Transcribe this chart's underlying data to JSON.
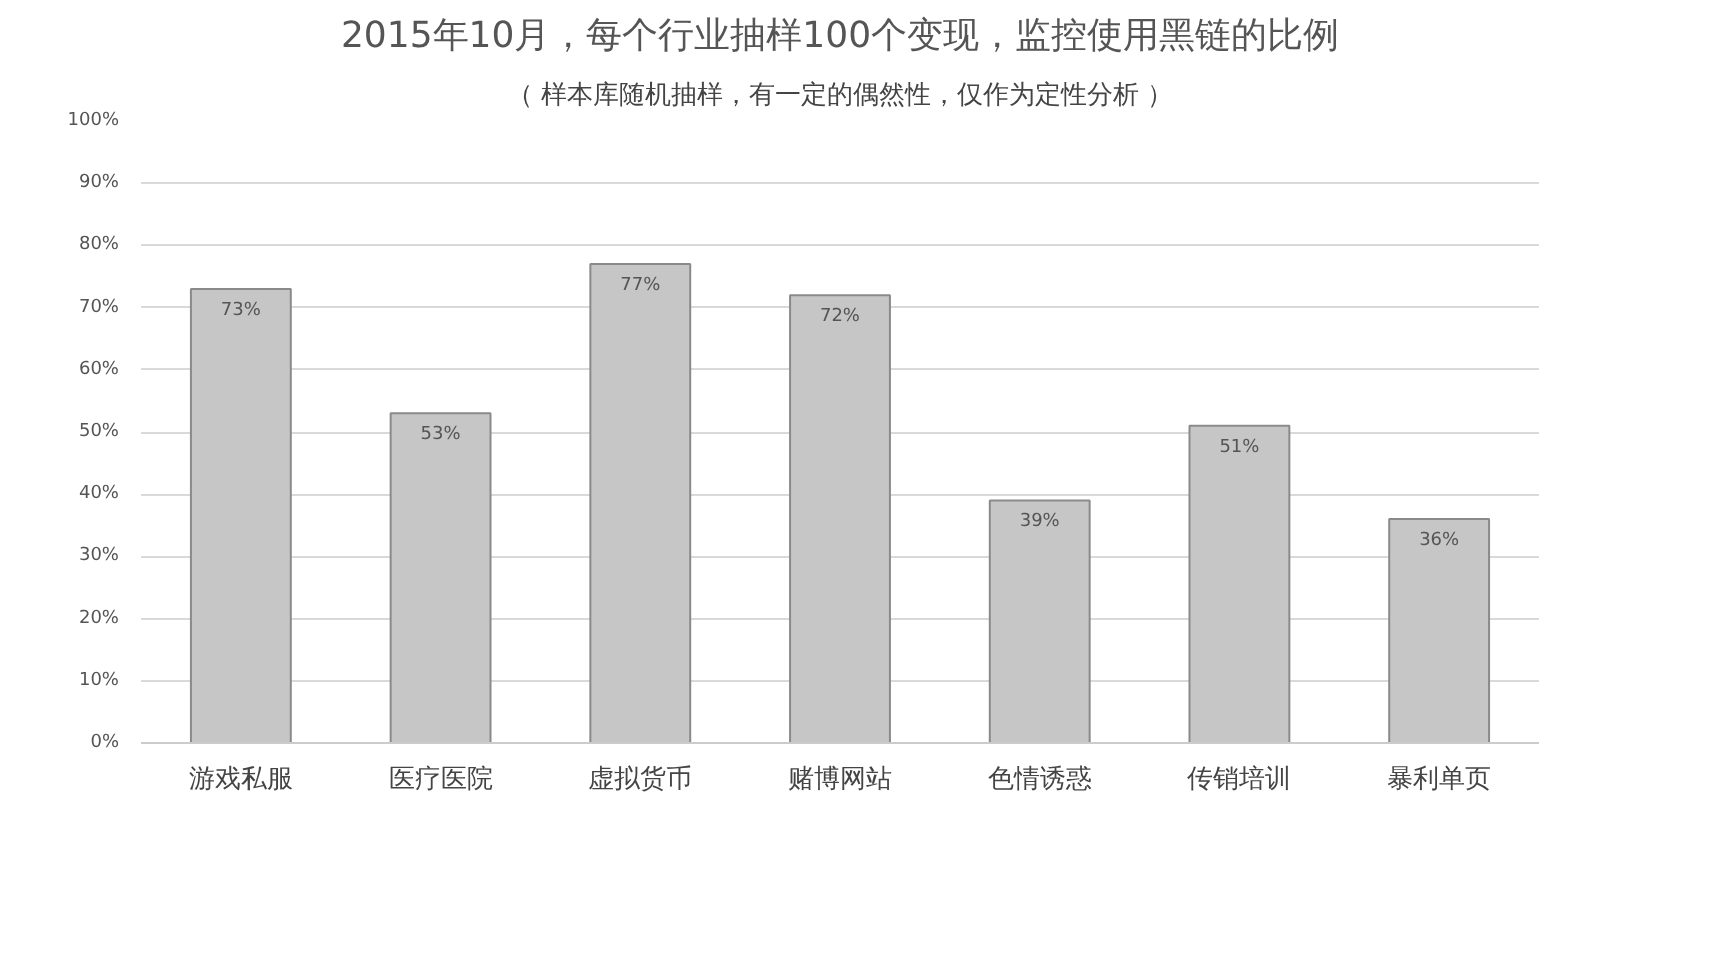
{
  "chart_data": {
    "type": "bar",
    "title": "2015年10月，每个行业抽样100个变现，监控使用黑链的比例",
    "subtitle": "（ 样本库随机抽样，有一定的偶然性，仅作为定性分析 ）",
    "categories": [
      "游戏私服",
      "医疗医院",
      "虚拟货币",
      "赌博网站",
      "色情诱惑",
      "传销培训",
      "暴利单页"
    ],
    "values": [
      73,
      53,
      77,
      72,
      39,
      51,
      36
    ],
    "value_labels": [
      "73%",
      "53%",
      "77%",
      "72%",
      "39%",
      "51%",
      "36%"
    ],
    "color": "#c6c6c6",
    "ylim": [
      0,
      100
    ],
    "yticks": [
      {
        "value": 0,
        "label": "0%"
      },
      {
        "value": 10,
        "label": "10%"
      },
      {
        "value": 20,
        "label": "20%"
      },
      {
        "value": 30,
        "label": "30%"
      },
      {
        "value": 40,
        "label": "40%"
      },
      {
        "value": 50,
        "label": "50%"
      },
      {
        "value": 60,
        "label": "60%"
      },
      {
        "value": 70,
        "label": "70%"
      },
      {
        "value": 80,
        "label": "80%"
      },
      {
        "value": 90,
        "label": "90%"
      },
      {
        "value": 100,
        "label": "100%"
      }
    ],
    "grid": "y"
  }
}
